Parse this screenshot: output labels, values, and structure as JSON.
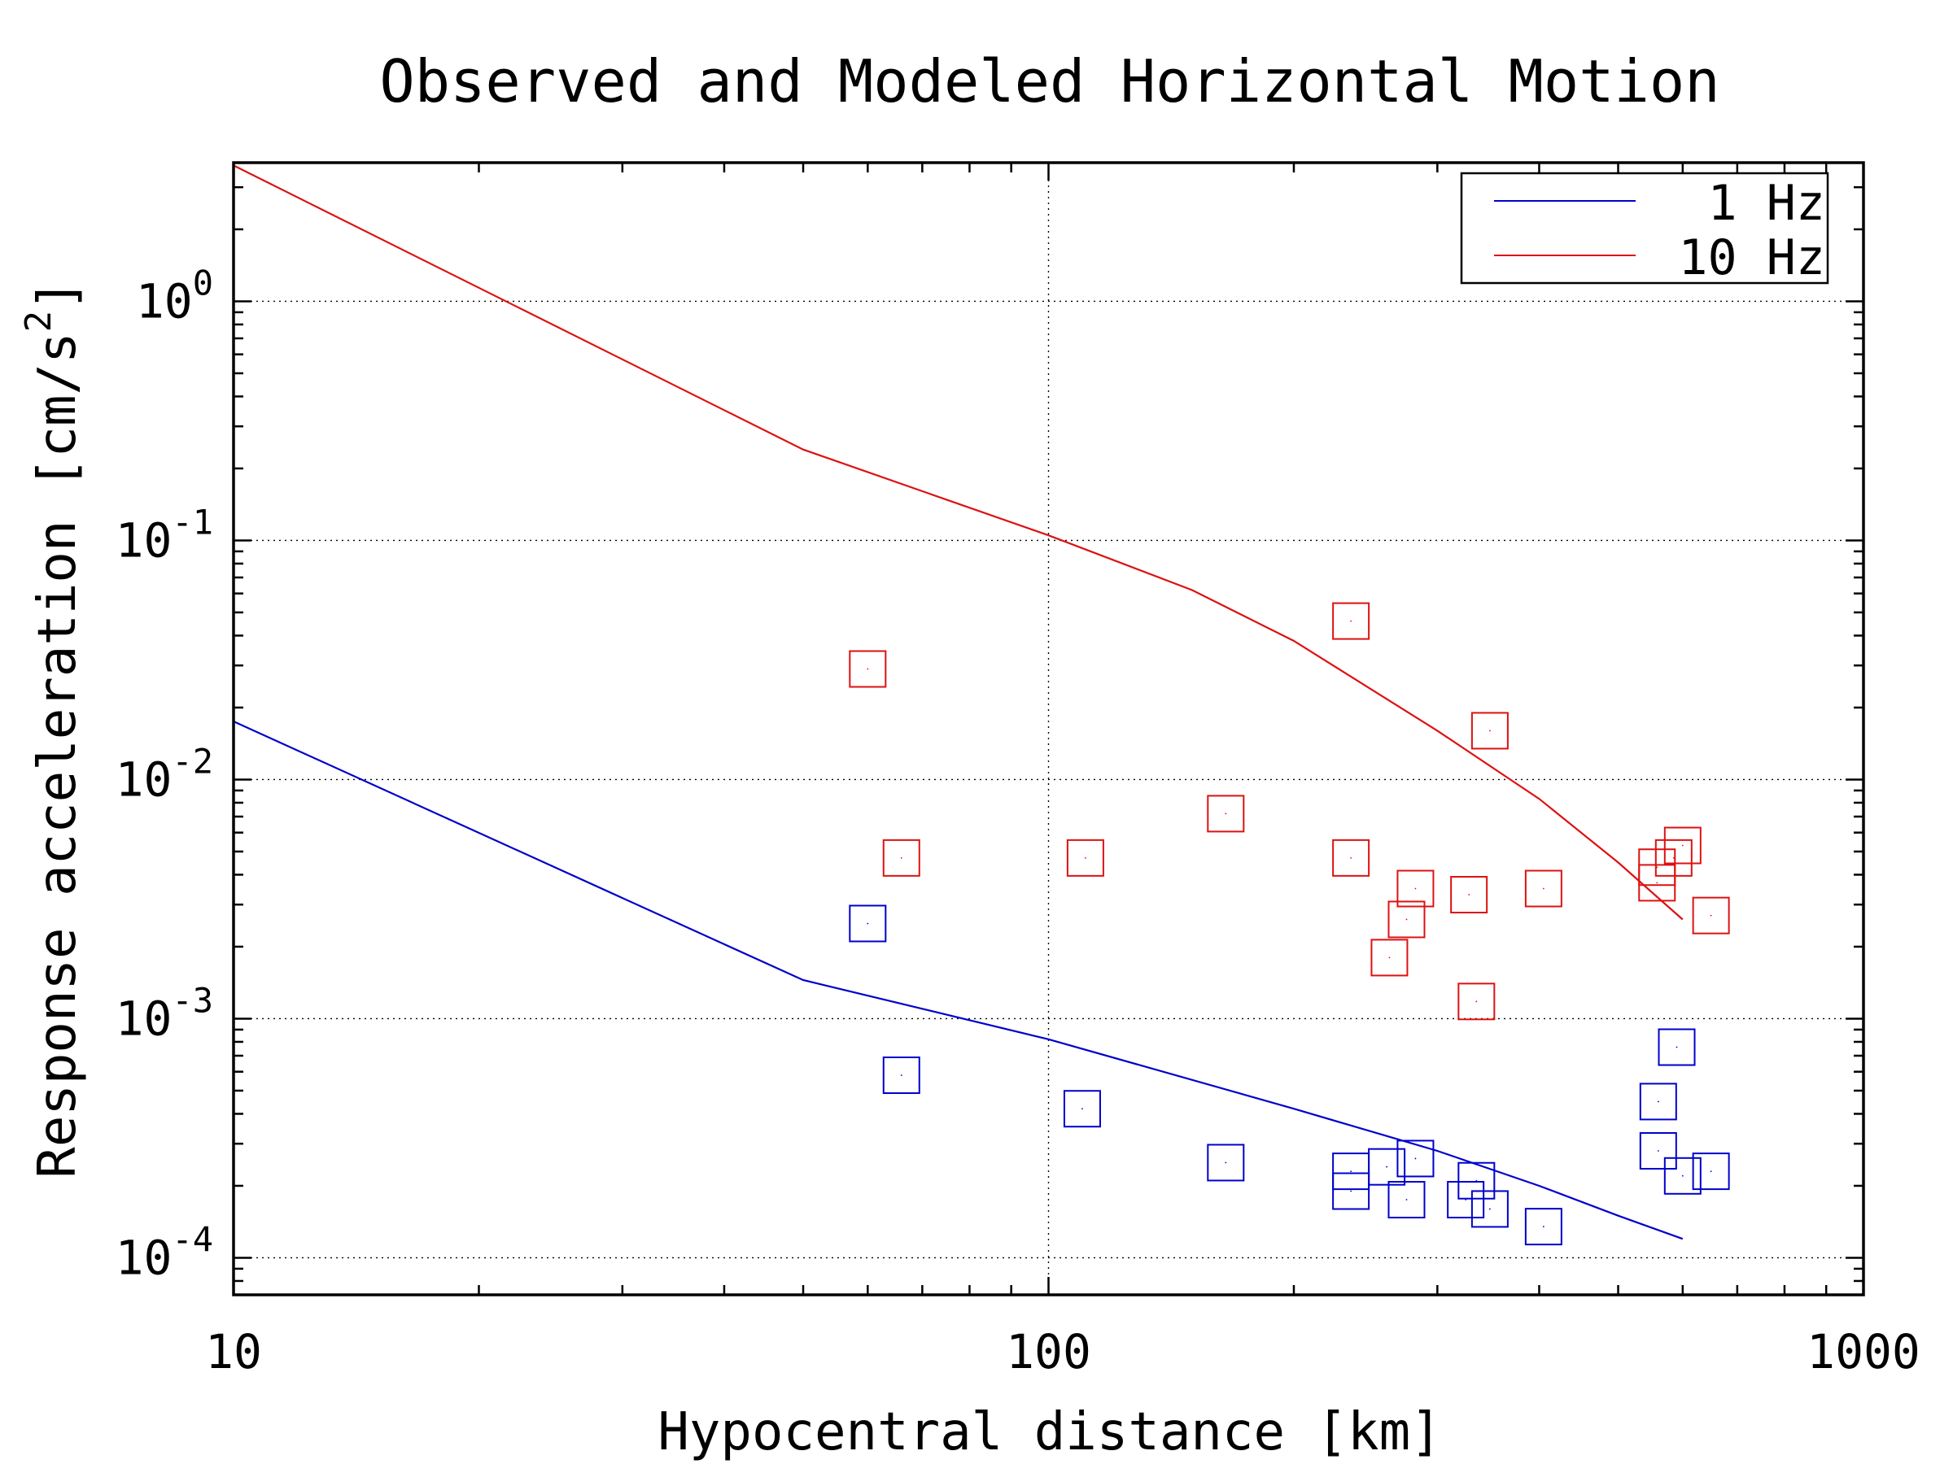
{
  "chart_data": {
    "type": "scatter",
    "title": "Observed and Modeled Horizontal Motion",
    "xlabel": "Hypocentral distance [km]",
    "ylabel": "Response acceleration [cm/s",
    "ylabel_superscript": "2",
    "ylabel_close": "]",
    "x_scale": "log",
    "y_scale": "log",
    "xlim": [
      10,
      1000
    ],
    "ylim": [
      7e-05,
      3.8
    ],
    "x_ticks": [
      {
        "value": 10,
        "label": "10"
      },
      {
        "value": 100,
        "label": "100"
      },
      {
        "value": 1000,
        "label": "1000"
      }
    ],
    "y_ticks": [
      {
        "value": 0.0001,
        "base": "10",
        "exp": "-4"
      },
      {
        "value": 0.001,
        "base": "10",
        "exp": "-3"
      },
      {
        "value": 0.01,
        "base": "10",
        "exp": "-2"
      },
      {
        "value": 0.1,
        "base": "10",
        "exp": "-1"
      },
      {
        "value": 1,
        "base": "10",
        "exp": "0"
      }
    ],
    "grid": "dotted at major ticks",
    "legend_position": "top-right",
    "series": [
      {
        "name": "1 Hz",
        "kind": "line",
        "color": "#0000cc",
        "points": [
          [
            10,
            0.0175
          ],
          [
            50,
            0.00145
          ],
          [
            100,
            0.00082
          ],
          [
            200,
            0.00042
          ],
          [
            300,
            0.00028
          ],
          [
            400,
            0.0002
          ],
          [
            500,
            0.00015
          ],
          [
            600,
            0.00012
          ]
        ]
      },
      {
        "name": "10 Hz",
        "kind": "line",
        "color": "#dd1111",
        "points": [
          [
            10,
            3.7
          ],
          [
            50,
            0.24
          ],
          [
            100,
            0.105
          ],
          [
            150,
            0.062
          ],
          [
            200,
            0.038
          ],
          [
            300,
            0.016
          ],
          [
            400,
            0.0083
          ],
          [
            500,
            0.0045
          ],
          [
            600,
            0.0026
          ]
        ]
      },
      {
        "name": "",
        "kind": "markers",
        "marker": "square",
        "color": "#dd1111",
        "points": [
          [
            60,
            0.029
          ],
          [
            66,
            0.0047
          ],
          [
            111,
            0.0047
          ],
          [
            165,
            0.0072
          ],
          [
            235,
            0.046
          ],
          [
            235,
            0.0047
          ],
          [
            262,
            0.0018
          ],
          [
            275,
            0.0026
          ],
          [
            282,
            0.0035
          ],
          [
            328,
            0.0033
          ],
          [
            335,
            0.00118
          ],
          [
            348,
            0.016
          ],
          [
            405,
            0.0035
          ],
          [
            558,
            0.0043
          ],
          [
            558,
            0.0037
          ],
          [
            585,
            0.0047
          ],
          [
            600,
            0.0053
          ],
          [
            650,
            0.0027
          ]
        ]
      },
      {
        "name": "",
        "kind": "markers",
        "marker": "square",
        "color": "#0000cc",
        "points": [
          [
            60,
            0.0025
          ],
          [
            66,
            0.00058
          ],
          [
            110,
            0.00042
          ],
          [
            165,
            0.00025
          ],
          [
            235,
            0.00023
          ],
          [
            235,
            0.00019
          ],
          [
            260,
            0.00024
          ],
          [
            282,
            0.00026
          ],
          [
            275,
            0.000175
          ],
          [
            325,
            0.000175
          ],
          [
            335,
            0.00021
          ],
          [
            348,
            0.00016
          ],
          [
            405,
            0.000135
          ],
          [
            560,
            0.00045
          ],
          [
            560,
            0.00028
          ],
          [
            590,
            0.00076
          ],
          [
            600,
            0.00022
          ],
          [
            650,
            0.00023
          ]
        ]
      }
    ]
  }
}
